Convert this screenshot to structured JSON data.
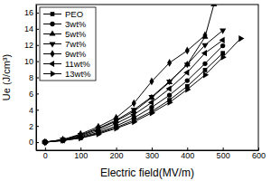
{
  "chart_data": {
    "type": "line",
    "x_label": "Electric field(MV/m)",
    "y_label": "Ue (J/cm³)",
    "xlim": [
      -25,
      600
    ],
    "xticks": [
      0,
      100,
      200,
      300,
      400,
      500,
      600
    ],
    "ylim": [
      -1,
      17
    ],
    "yticks": [
      0,
      2,
      4,
      6,
      8,
      10,
      12,
      14,
      16
    ],
    "legend": "upper left",
    "grid": false,
    "series": [
      {
        "name": "PEO",
        "color": "#000000",
        "marker": "square",
        "line_style": "solid",
        "x": [
          0,
          50,
          100,
          150,
          200,
          250,
          300,
          350,
          400,
          450,
          500
        ],
        "values": [
          0,
          0.2,
          0.5,
          1.1,
          1.8,
          2.7,
          3.8,
          5.2,
          6.9,
          8.9,
          11.0
        ]
      },
      {
        "name": "3wt%",
        "color": "#000000",
        "marker": "circle",
        "line_style": "solid",
        "x": [
          0,
          50,
          100,
          150,
          200,
          250,
          300,
          350,
          400,
          450,
          500
        ],
        "values": [
          0,
          0.2,
          0.6,
          1.2,
          2.0,
          3.0,
          4.3,
          5.8,
          7.6,
          9.7,
          11.9
        ]
      },
      {
        "name": "5wt%",
        "color": "#000000",
        "marker": "triangle-up",
        "line_style": "solid",
        "x": [
          0,
          50,
          100,
          150,
          200,
          250,
          300,
          350,
          400,
          450,
          475
        ],
        "values": [
          0,
          0.3,
          0.8,
          1.6,
          2.6,
          3.8,
          5.5,
          7.4,
          9.6,
          13.0,
          17.0
        ]
      },
      {
        "name": "7wt%",
        "color": "#000000",
        "marker": "triangle-down",
        "line_style": "solid",
        "x": [
          0,
          50,
          100,
          150,
          200,
          250,
          300,
          350,
          400,
          450,
          500
        ],
        "values": [
          0,
          0.3,
          0.9,
          1.7,
          2.7,
          4.0,
          5.6,
          7.5,
          9.6,
          12.0,
          13.8
        ]
      },
      {
        "name": "9wt%",
        "color": "#000000",
        "marker": "diamond",
        "line_style": "solid",
        "x": [
          0,
          50,
          100,
          150,
          200,
          250,
          300,
          350,
          400,
          450
        ],
        "values": [
          0,
          0.3,
          1.0,
          1.9,
          3.0,
          4.8,
          7.5,
          9.8,
          11.3,
          13.2
        ]
      },
      {
        "name": "11wt%",
        "color": "#000000",
        "marker": "triangle-left",
        "line_style": "solid",
        "x": [
          0,
          50,
          100,
          150,
          200,
          250,
          300,
          350,
          400,
          450,
          500
        ],
        "values": [
          0,
          0.25,
          0.7,
          1.4,
          2.3,
          3.4,
          4.9,
          6.6,
          8.6,
          11.0,
          12.6
        ]
      },
      {
        "name": "13wt%",
        "color": "#000000",
        "marker": "triangle-right",
        "line_style": "solid",
        "x": [
          0,
          50,
          100,
          150,
          200,
          250,
          300,
          350,
          400,
          450,
          500,
          550
        ],
        "values": [
          0,
          0.2,
          0.5,
          1.0,
          1.7,
          2.5,
          3.6,
          4.9,
          6.5,
          8.3,
          10.5,
          12.8
        ]
      }
    ]
  }
}
